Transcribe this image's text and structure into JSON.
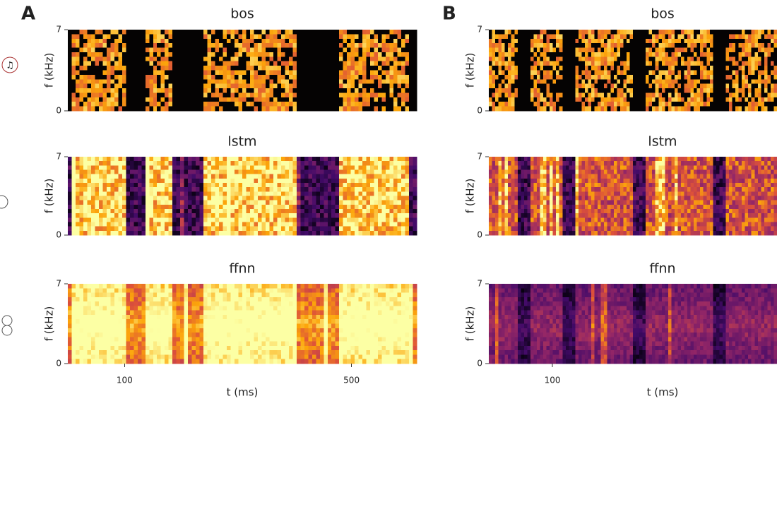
{
  "chart_data": [
    {
      "type": "spectrogram",
      "panel": "A",
      "title": "bos",
      "ylabel": "f (kHz)",
      "ylim": [
        0,
        7
      ],
      "yticks": [
        0,
        7
      ],
      "xlim": [
        0,
        615
      ],
      "colormap": "bos"
    },
    {
      "type": "spectrogram",
      "title": "lstm",
      "ylabel": "f (kHz)",
      "ylim": [
        0,
        7
      ],
      "yticks": [
        0,
        7
      ],
      "xlim": [
        0,
        615
      ],
      "colormap": "inferno"
    },
    {
      "type": "spectrogram",
      "title": "ffnn",
      "ylabel": "f (kHz)",
      "xlabel": "t (ms)",
      "ylim": [
        0,
        7
      ],
      "yticks": [
        0,
        7
      ],
      "xlim": [
        0,
        615
      ],
      "xticks": [
        100,
        500
      ],
      "colormap": "inferno"
    },
    {
      "type": "spectrogram",
      "panel": "B",
      "title": "bos",
      "ylabel": "f (kHz)",
      "ylim": [
        0,
        7
      ],
      "yticks": [
        0,
        7
      ],
      "xlim": [
        0,
        453
      ],
      "colormap": "bos"
    },
    {
      "type": "spectrogram",
      "title": "lstm",
      "ylabel": "f (kHz)",
      "ylim": [
        0,
        7
      ],
      "yticks": [
        0,
        7
      ],
      "xlim": [
        0,
        453
      ],
      "colormap": "inferno"
    },
    {
      "type": "spectrogram",
      "title": "ffnn",
      "ylabel": "f (kHz)",
      "xlabel": "t (ms)",
      "ylim": [
        0,
        7
      ],
      "yticks": [
        0,
        7
      ],
      "xlim": [
        0,
        453
      ],
      "xticks": [
        100
      ],
      "colormap": "inferno"
    }
  ]
}
